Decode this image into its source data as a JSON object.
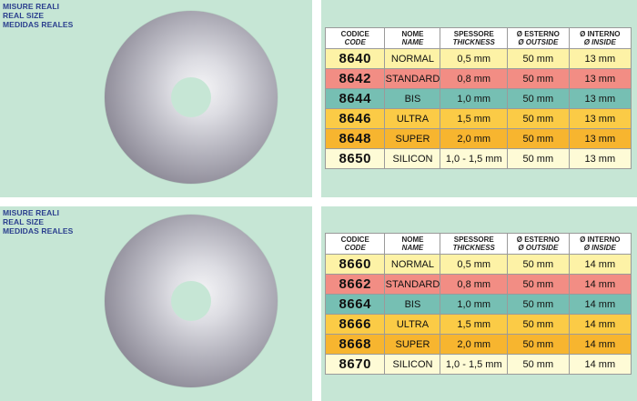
{
  "size_label": [
    "MISURE REALI",
    "REAL SIZE",
    "MEDIDAS REALES"
  ],
  "headers": [
    {
      "main": "CODICE",
      "sub": "CODE"
    },
    {
      "main": "NOME",
      "sub": "NAME"
    },
    {
      "main": "SPESSORE",
      "sub": "THICKNESS"
    },
    {
      "main": "Ø ESTERNO",
      "sub": "Ø OUTSIDE"
    },
    {
      "main": "Ø INTERNO",
      "sub": "Ø INSIDE"
    }
  ],
  "row_colors": [
    "#fdf2a6",
    "#f28d84",
    "#76bfb3",
    "#fbcb46",
    "#f7b52f",
    "#fefbd6"
  ],
  "tables": [
    {
      "rows": [
        {
          "code": "8640",
          "name": "NORMAL",
          "thickness": "0,5 mm",
          "outside": "50 mm",
          "inside": "13 mm"
        },
        {
          "code": "8642",
          "name": "STANDARD",
          "thickness": "0,8 mm",
          "outside": "50 mm",
          "inside": "13 mm"
        },
        {
          "code": "8644",
          "name": "BIS",
          "thickness": "1,0 mm",
          "outside": "50 mm",
          "inside": "13 mm"
        },
        {
          "code": "8646",
          "name": "ULTRA",
          "thickness": "1,5 mm",
          "outside": "50 mm",
          "inside": "13 mm"
        },
        {
          "code": "8648",
          "name": "SUPER",
          "thickness": "2,0 mm",
          "outside": "50 mm",
          "inside": "13 mm"
        },
        {
          "code": "8650",
          "name": "SILICON",
          "thickness": "1,0 - 1,5 mm",
          "outside": "50 mm",
          "inside": "13 mm"
        }
      ]
    },
    {
      "rows": [
        {
          "code": "8660",
          "name": "NORMAL",
          "thickness": "0,5 mm",
          "outside": "50 mm",
          "inside": "14 mm"
        },
        {
          "code": "8662",
          "name": "STANDARD",
          "thickness": "0,8 mm",
          "outside": "50 mm",
          "inside": "14 mm"
        },
        {
          "code": "8664",
          "name": "BIS",
          "thickness": "1,0 mm",
          "outside": "50 mm",
          "inside": "14 mm"
        },
        {
          "code": "8666",
          "name": "ULTRA",
          "thickness": "1,5 mm",
          "outside": "50 mm",
          "inside": "14 mm"
        },
        {
          "code": "8668",
          "name": "SUPER",
          "thickness": "2,0 mm",
          "outside": "50 mm",
          "inside": "14 mm"
        },
        {
          "code": "8670",
          "name": "SILICON",
          "thickness": "1,0 - 1,5 mm",
          "outside": "50 mm",
          "inside": "14 mm"
        }
      ]
    }
  ]
}
